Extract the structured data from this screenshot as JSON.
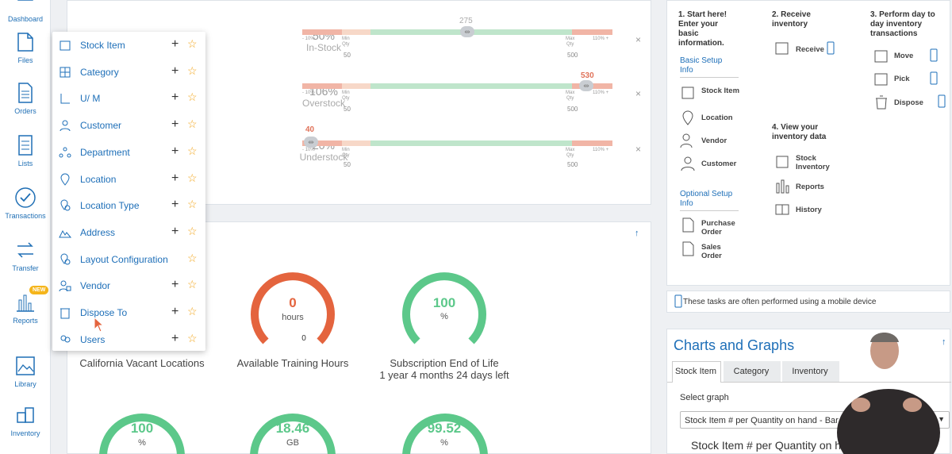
{
  "sidebar": {
    "items": [
      {
        "label": "Dashboard",
        "icon": "dashboard-icon"
      },
      {
        "label": "Files",
        "icon": "files-icon"
      },
      {
        "label": "Orders",
        "icon": "orders-icon"
      },
      {
        "label": "Lists",
        "icon": "lists-icon"
      },
      {
        "label": "Transactions",
        "icon": "transactions-icon"
      },
      {
        "label": "Transfer",
        "icon": "transfer-icon"
      },
      {
        "label": "Reports",
        "icon": "reports-icon",
        "badge": "NEW"
      },
      {
        "label": "Library",
        "icon": "library-icon"
      },
      {
        "label": "Inventory",
        "icon": "inventory-icon"
      }
    ]
  },
  "dropdown": {
    "items": [
      {
        "label": "Stock Item",
        "plus": "+",
        "star": "☆"
      },
      {
        "label": "Category",
        "plus": "+",
        "star": "☆"
      },
      {
        "label": "U/ M",
        "plus": "+",
        "star": "☆"
      },
      {
        "label": "Customer",
        "plus": "+",
        "star": "☆"
      },
      {
        "label": "Department",
        "plus": "+",
        "star": "☆"
      },
      {
        "label": "Location",
        "plus": "+",
        "star": "☆"
      },
      {
        "label": "Location Type",
        "plus": "+",
        "star": "☆"
      },
      {
        "label": "Address",
        "plus": "+",
        "star": "☆"
      },
      {
        "label": "Layout Configuration",
        "plus": "",
        "star": "☆"
      },
      {
        "label": "Vendor",
        "plus": "+",
        "star": "☆"
      },
      {
        "label": "Dispose To",
        "plus": "+",
        "star": "☆"
      },
      {
        "label": "Users",
        "plus": "+",
        "star": "☆"
      }
    ]
  },
  "stock_rows": [
    {
      "percent": "50%",
      "status": "In-Stock",
      "marker": "275",
      "marker_fraction": 0.5
    },
    {
      "percent": "106%",
      "status": "Overstock",
      "marker": "530",
      "marker_fraction": 0.98
    },
    {
      "percent": "20%",
      "status": "Understock",
      "marker": "40",
      "marker_fraction": 0.0
    }
  ],
  "bar_labels": {
    "neg": "- 10%",
    "min_line1": "Min",
    "min_line2": "Qty",
    "min_value": "50",
    "max_line1": "Max",
    "max_line2": "Qty",
    "max_value": "500",
    "over": "110% +",
    "close": "×"
  },
  "gauges_row1": [
    {
      "value": "",
      "unit": "",
      "label": "California Vacant Locations",
      "sub": "",
      "color": "#5cc88a"
    },
    {
      "value": "0",
      "unit": "hours",
      "label": "Available Training Hours",
      "sub": "",
      "color": "#e4643e",
      "scale_end": "0"
    },
    {
      "value": "100",
      "unit": "%",
      "label": "Subscription End of Life",
      "sub": "1 year 4 months 24 days left",
      "color": "#5cc88a"
    }
  ],
  "gauges_row2": [
    {
      "value": "100",
      "unit": "%",
      "color": "#5cc88a"
    },
    {
      "value": "18.46",
      "unit": "GB",
      "color": "#5cc88a"
    },
    {
      "value": "99.52",
      "unit": "%",
      "color": "#5cc88a"
    }
  ],
  "panel_arrow": "↑",
  "quick_start": {
    "step1": "1. Start here! Enter your basic information.",
    "basic_setup": "Basic Setup Info",
    "basic_items": [
      "Stock Item",
      "Location",
      "Vendor",
      "Customer"
    ],
    "optional_setup": "Optional Setup Info",
    "optional_items": [
      "Purchase Order",
      "Sales Order"
    ],
    "step2": "2. Receive inventory",
    "receive": "Receive",
    "step3": "3. Perform day to day inventory transactions",
    "step3_items": [
      "Move",
      "Pick",
      "Dispose"
    ],
    "step4": "4. View your inventory data",
    "step4_items": [
      "Stock Inventory",
      "Reports",
      "History"
    ],
    "mobile_note": "These tasks are often performed using a mobile device"
  },
  "charts": {
    "title": "Charts and Graphs",
    "tabs": [
      "Stock Item",
      "Category",
      "Inventory"
    ],
    "select_label": "Select graph",
    "select_value": "Stock Item # per Quantity on hand - Bar Chart",
    "chart_title": "Stock Item # per Quantity on hand - Bar Chart"
  },
  "colors": {
    "accent": "#1e6fb8",
    "green": "#5cc88a",
    "orange": "#e4643e",
    "star": "#f2a51a"
  }
}
